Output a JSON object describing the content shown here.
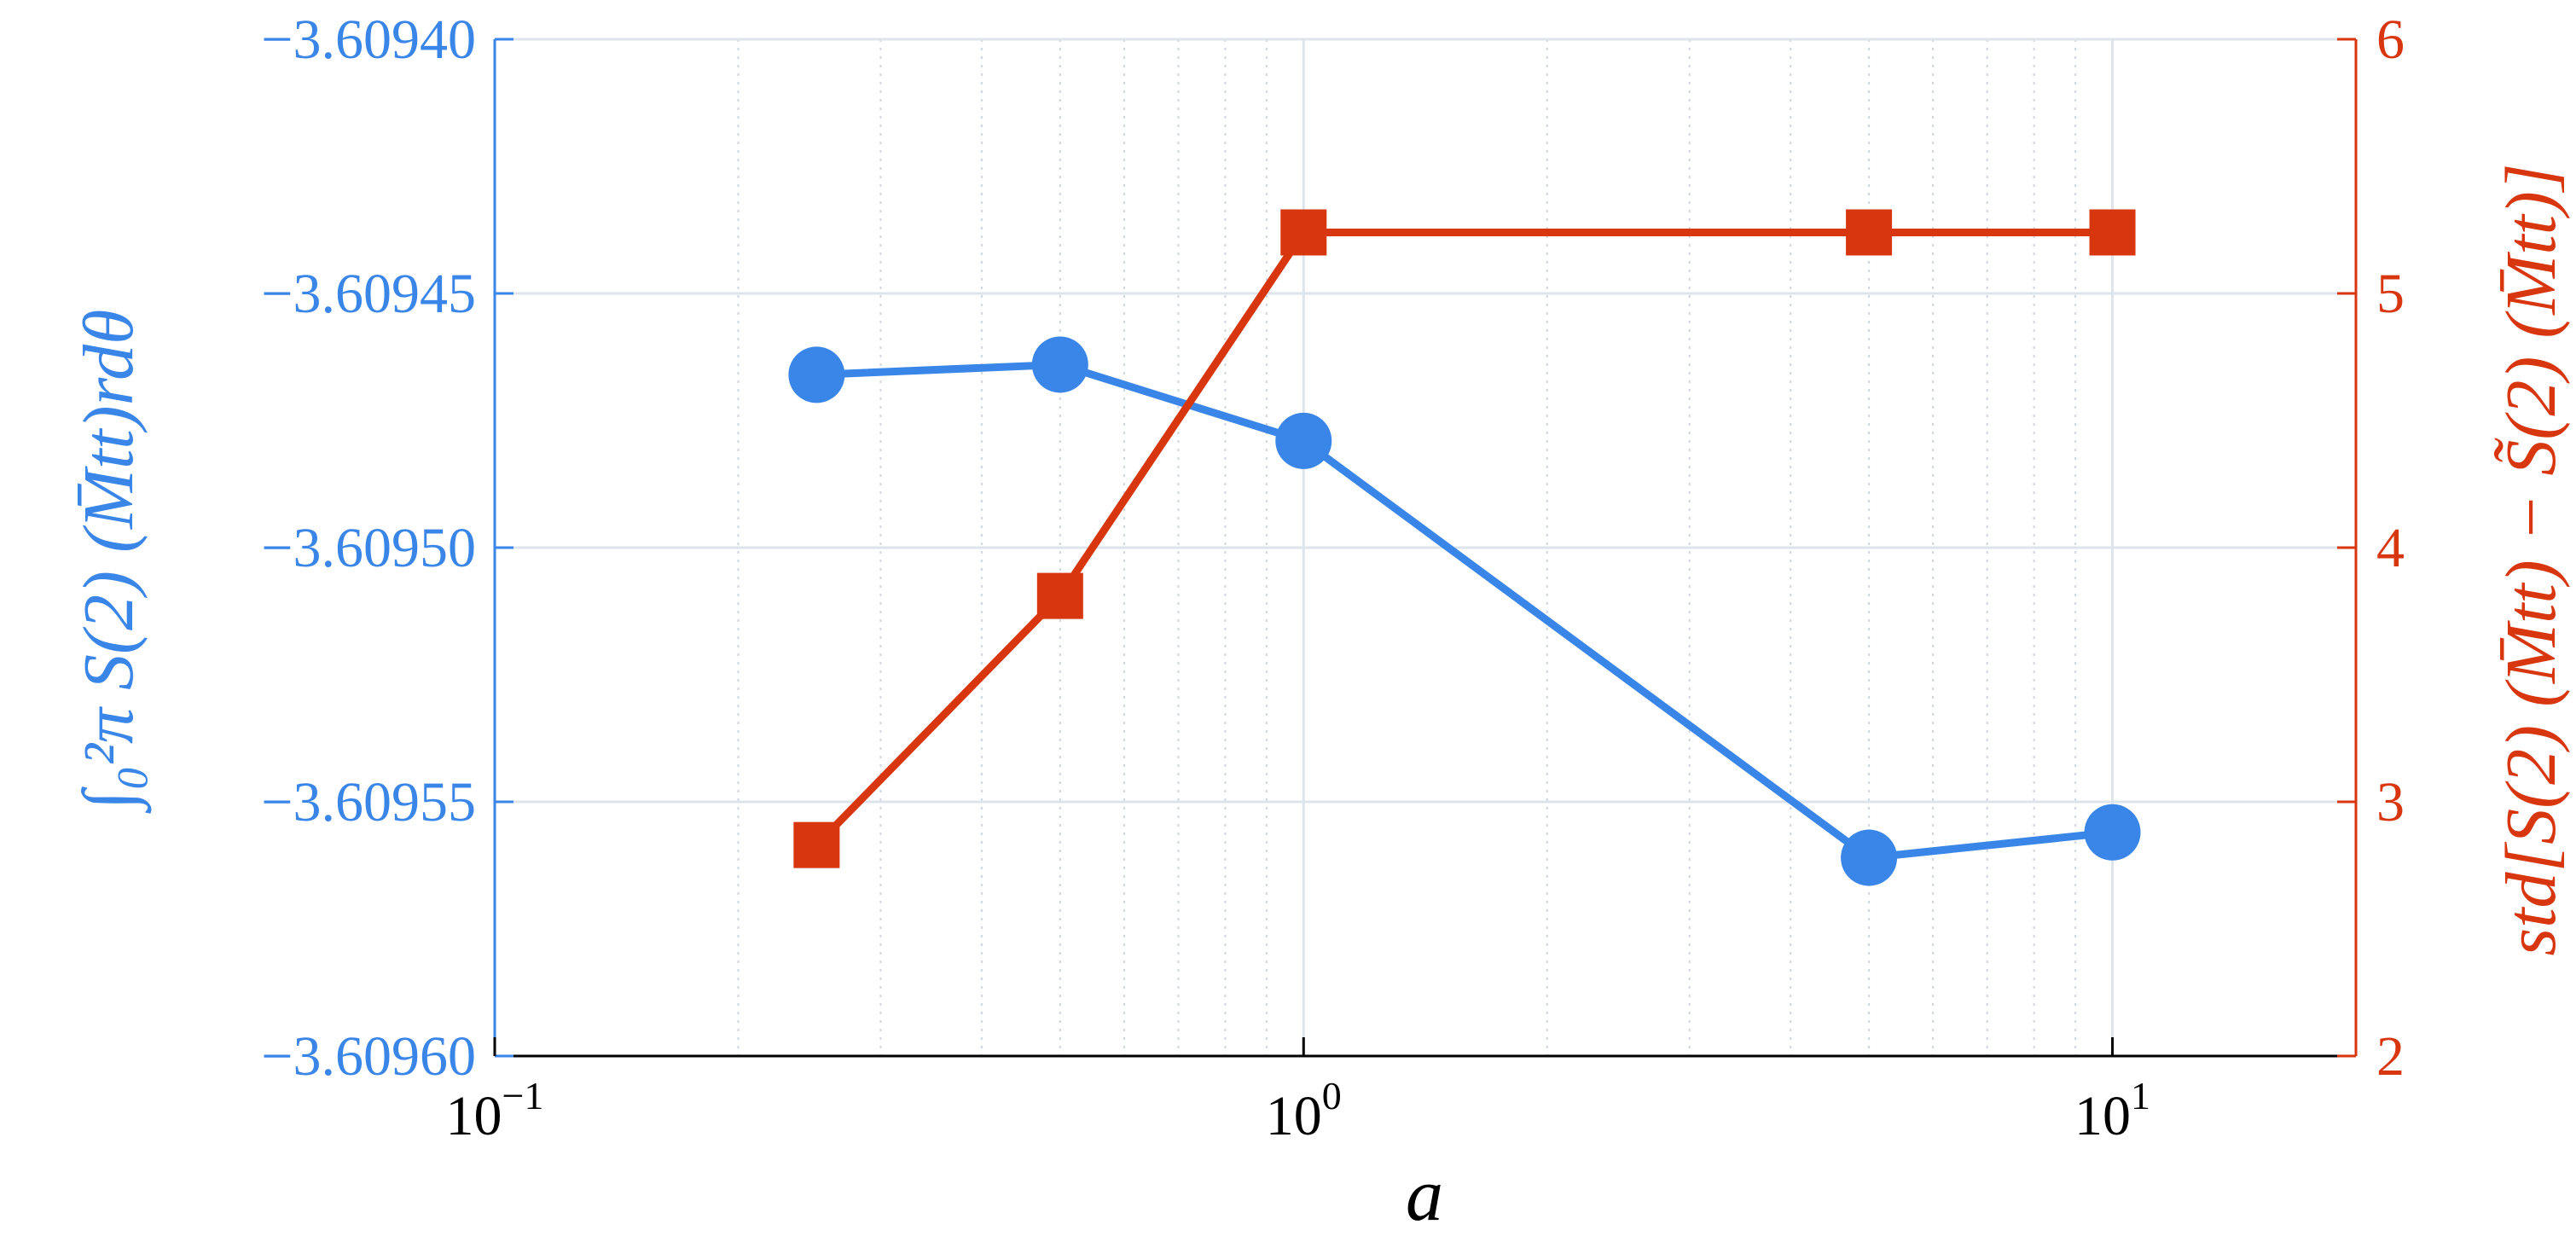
{
  "chart_data": {
    "type": "line",
    "xscale": "log",
    "xlabel": "a",
    "ylabel_left": "∫₀²π S(2) (M̄tt)rdθ",
    "ylabel_right": "std[S(2) (M̄tt) − S̃(2) (M̄tt)]",
    "xlim": [
      0.1,
      20
    ],
    "ylim_left": [
      -3.6096,
      -3.6094
    ],
    "ylim_right": [
      2,
      6
    ],
    "x_ticks": [
      {
        "value": 0.1,
        "base": "10",
        "exp": "−1"
      },
      {
        "value": 1,
        "base": "10",
        "exp": "0"
      },
      {
        "value": 10,
        "base": "10",
        "exp": "1"
      }
    ],
    "y_ticks_left": [
      {
        "value": -3.6094,
        "label": "−3.60940"
      },
      {
        "value": -3.60945,
        "label": "−3.60945"
      },
      {
        "value": -3.6095,
        "label": "−3.60950"
      },
      {
        "value": -3.60955,
        "label": "−3.60955"
      },
      {
        "value": -3.6096,
        "label": "−3.60960"
      }
    ],
    "y_ticks_right": [
      {
        "value": 2,
        "label": "2"
      },
      {
        "value": 3,
        "label": "3"
      },
      {
        "value": 4,
        "label": "4"
      },
      {
        "value": 5,
        "label": "5"
      },
      {
        "value": 6,
        "label": "6"
      }
    ],
    "grid": true,
    "series": [
      {
        "axis": "left",
        "color": "#3a86e8",
        "marker": "circle",
        "x": [
          0.25,
          0.5,
          1,
          5,
          10
        ],
        "y": [
          -3.609466,
          -3.609464,
          -3.609479,
          -3.609561,
          -3.609556
        ]
      },
      {
        "axis": "right",
        "color": "#d8360f",
        "marker": "square",
        "x": [
          0.25,
          0.5,
          1,
          5,
          10
        ],
        "y": [
          2.83,
          3.81,
          5.24,
          5.24,
          5.24
        ]
      }
    ]
  }
}
